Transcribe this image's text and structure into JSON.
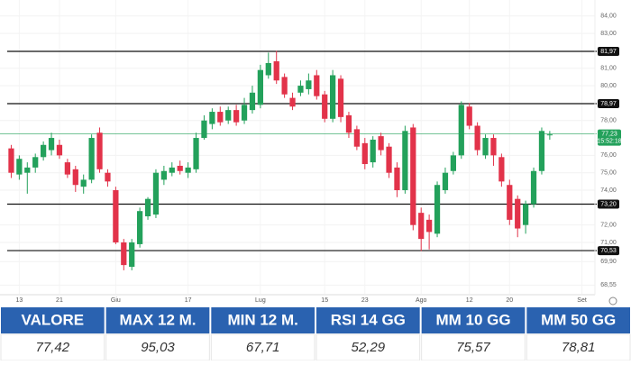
{
  "chart_data": {
    "type": "candlestick",
    "categories": [
      null,
      "13",
      null,
      null,
      null,
      null,
      "21",
      null,
      null,
      null,
      null,
      null,
      null,
      "Giu",
      null,
      null,
      null,
      null,
      null,
      null,
      null,
      null,
      "17",
      null,
      null,
      null,
      null,
      null,
      null,
      null,
      null,
      "Lug",
      null,
      null,
      null,
      null,
      null,
      null,
      null,
      "15",
      null,
      null,
      null,
      null,
      "23",
      null,
      null,
      null,
      null,
      null,
      null,
      "Ago",
      null,
      null,
      null,
      null,
      null,
      "12",
      null,
      null,
      null,
      null,
      "20",
      null,
      null,
      null,
      null,
      null,
      null,
      null,
      null,
      "Set"
    ],
    "open": [
      76.4,
      74.9,
      75.0,
      75.3,
      75.9,
      76.3,
      76.6,
      75.6,
      75.2,
      74.2,
      74.6,
      77.3,
      75.0,
      74.0,
      71.0,
      69.6,
      70.9,
      72.5,
      72.6,
      74.6,
      75.0,
      75.4,
      75.0,
      75.2,
      77.0,
      77.8,
      78.5,
      78.0,
      78.6,
      78.0,
      78.6,
      78.9,
      80.6,
      81.4,
      80.5,
      79.3,
      79.6,
      79.8,
      80.6,
      79.5,
      78.1,
      80.4,
      78.3,
      77.5,
      76.7,
      75.6,
      77.1,
      76.5,
      75.3,
      74.0,
      77.6,
      72.7,
      72.3,
      71.5,
      74.0,
      75.1,
      76.0,
      78.8,
      77.7,
      76.0,
      77.0,
      75.9,
      74.3,
      73.5,
      72.0,
      73.2,
      75.1,
      77.2,
      null,
      null,
      null,
      null
    ],
    "high": [
      76.6,
      76.0,
      75.6,
      76.1,
      76.8,
      77.3,
      76.9,
      75.8,
      75.4,
      74.9,
      77.2,
      77.6,
      75.2,
      74.2,
      71.2,
      71.2,
      73.0,
      73.6,
      75.2,
      75.4,
      75.6,
      75.7,
      75.6,
      77.3,
      78.3,
      78.7,
      78.8,
      78.8,
      78.9,
      79.3,
      80.0,
      81.2,
      81.9,
      82.0,
      80.7,
      79.6,
      80.3,
      80.7,
      80.9,
      79.7,
      80.9,
      80.6,
      78.5,
      77.7,
      77.0,
      77.1,
      77.3,
      76.7,
      75.6,
      77.7,
      77.8,
      73.0,
      72.6,
      74.5,
      75.3,
      76.2,
      79.1,
      79.0,
      77.9,
      77.2,
      77.2,
      76.1,
      74.6,
      73.7,
      73.4,
      75.3,
      77.6,
      77.4,
      null,
      null,
      null,
      null
    ],
    "low": [
      74.7,
      74.6,
      73.8,
      75.0,
      75.7,
      76.0,
      75.8,
      74.7,
      73.9,
      73.8,
      74.4,
      75.0,
      74.2,
      70.9,
      69.4,
      69.4,
      70.7,
      72.3,
      72.4,
      74.3,
      74.8,
      74.9,
      74.7,
      75.0,
      76.9,
      77.5,
      77.7,
      77.8,
      77.7,
      77.8,
      78.4,
      78.7,
      80.4,
      80.1,
      79.3,
      78.6,
      79.4,
      79.5,
      79.2,
      77.9,
      77.9,
      77.9,
      77.0,
      76.3,
      75.2,
      75.3,
      76.0,
      74.7,
      73.6,
      73.8,
      71.7,
      70.5,
      70.6,
      71.3,
      73.8,
      74.9,
      75.8,
      77.5,
      76.0,
      75.8,
      75.4,
      74.2,
      72.0,
      71.3,
      71.5,
      73.0,
      74.9,
      76.9,
      null,
      null,
      null,
      null
    ],
    "close": [
      75.0,
      75.8,
      75.3,
      75.9,
      76.6,
      77.0,
      76.0,
      74.9,
      74.3,
      74.6,
      77.0,
      75.2,
      74.5,
      71.0,
      69.7,
      71.0,
      72.8,
      73.5,
      75.0,
      75.1,
      75.3,
      75.1,
      75.3,
      77.0,
      78.0,
      78.5,
      77.9,
      78.6,
      77.9,
      78.9,
      79.6,
      80.9,
      81.3,
      80.3,
      79.5,
      78.8,
      80.0,
      80.3,
      79.4,
      78.1,
      80.6,
      78.2,
      77.3,
      76.5,
      75.5,
      76.9,
      76.3,
      75.0,
      74.0,
      77.4,
      72.0,
      71.2,
      71.6,
      74.3,
      75.0,
      76.0,
      78.9,
      77.7,
      76.3,
      77.0,
      76.0,
      74.5,
      72.3,
      71.8,
      73.2,
      75.1,
      77.4,
      77.2,
      null,
      null,
      null,
      null
    ],
    "colors": {
      "up": "#23a15b",
      "down": "#e2334a",
      "level": "#111111",
      "last": "#23a15b"
    },
    "ylim": [
      68.05,
      84.92
    ],
    "yticks": [
      {
        "value": 84,
        "label": "84,00"
      },
      {
        "value": 83,
        "label": "83,00"
      },
      {
        "value": 81,
        "label": "81,00"
      },
      {
        "value": 80,
        "label": "80,00"
      },
      {
        "value": 78,
        "label": "78,00"
      },
      {
        "value": 76,
        "label": "76,00"
      },
      {
        "value": 75,
        "label": "75,00"
      },
      {
        "value": 74,
        "label": "74,00"
      },
      {
        "value": 72,
        "label": "72,00"
      },
      {
        "value": 71,
        "label": "71,00"
      },
      {
        "value": 69.9,
        "label": "69,90"
      },
      {
        "value": 68.55,
        "label": "68,55"
      }
    ],
    "levels": [
      {
        "value": 81.97,
        "label": "81,97"
      },
      {
        "value": 78.97,
        "label": "78,97"
      },
      {
        "value": 73.2,
        "label": "73,20"
      },
      {
        "value": 70.53,
        "label": "70,53"
      }
    ],
    "last_price": {
      "value": 77.23,
      "label": "77,23"
    },
    "last_time": "15:52:18",
    "grid": true
  },
  "table": {
    "headers": [
      "VALORE",
      "MAX 12 M.",
      "MIN 12 M.",
      "RSI 14 GG",
      "MM 10 GG",
      "MM 50 GG"
    ],
    "values": [
      "77,42",
      "95,03",
      "67,71",
      "52,29",
      "75,57",
      "78,81"
    ]
  }
}
